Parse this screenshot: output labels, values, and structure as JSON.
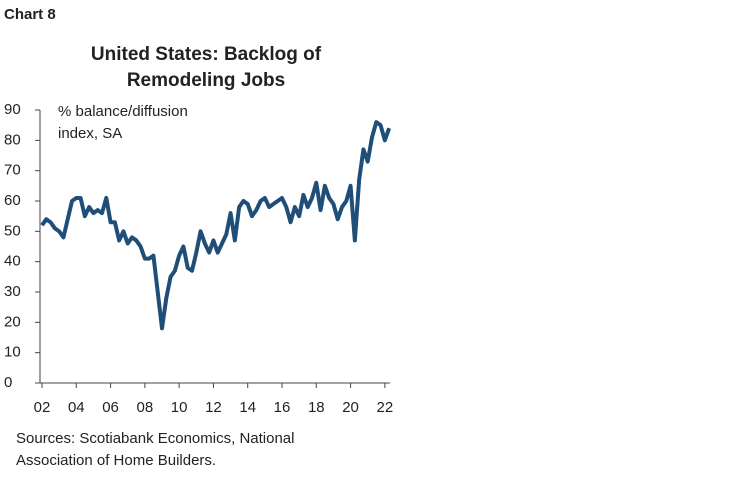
{
  "chart_data": {
    "type": "line",
    "chart_label": "Chart 8",
    "title": "United States: Backlog of Remodeling Jobs",
    "y_label": "% balance/diffusion index, SA",
    "source": "Sources: Scotiabank Economics, National Association of Home Builders.",
    "x": [
      2002,
      2002.25,
      2002.5,
      2002.75,
      2003,
      2003.25,
      2003.5,
      2003.75,
      2004,
      2004.25,
      2004.5,
      2004.75,
      2005,
      2005.25,
      2005.5,
      2005.75,
      2006,
      2006.25,
      2006.5,
      2006.75,
      2007,
      2007.25,
      2007.5,
      2007.75,
      2008,
      2008.25,
      2008.5,
      2008.75,
      2009,
      2009.25,
      2009.5,
      2009.75,
      2010,
      2010.25,
      2010.5,
      2010.75,
      2011,
      2011.25,
      2011.5,
      2011.75,
      2012,
      2012.25,
      2012.5,
      2012.75,
      2013,
      2013.25,
      2013.5,
      2013.75,
      2014,
      2014.25,
      2014.5,
      2014.75,
      2015,
      2015.25,
      2015.5,
      2015.75,
      2016,
      2016.25,
      2016.5,
      2016.75,
      2017,
      2017.25,
      2017.5,
      2017.75,
      2018,
      2018.25,
      2018.5,
      2018.75,
      2019,
      2019.25,
      2019.5,
      2019.75,
      2020,
      2020.25,
      2020.5,
      2020.75,
      2021,
      2021.25,
      2021.5,
      2021.75,
      2022,
      2022.25
    ],
    "series": [
      {
        "color": "#1f4e79",
        "values": [
          52,
          54,
          53,
          51,
          50,
          48,
          54,
          60,
          61,
          61,
          55,
          58,
          56,
          57,
          56,
          61,
          53,
          53,
          47,
          50,
          46,
          48,
          47,
          45,
          41,
          41,
          42,
          30,
          18,
          28,
          35,
          37,
          42,
          45,
          38,
          37,
          43,
          50,
          46,
          43,
          47,
          43,
          46,
          49,
          56,
          47,
          58,
          60,
          59,
          55,
          57,
          60,
          61,
          58,
          59,
          60,
          61,
          58,
          53,
          58,
          55,
          62,
          58,
          61,
          66,
          57,
          65,
          61,
          59,
          54,
          58,
          60,
          65,
          47,
          67,
          77,
          73,
          81,
          86,
          85,
          80,
          84
        ]
      }
    ],
    "xlim": [
      2002,
      2022.3
    ],
    "xticks": [
      {
        "value": 2002,
        "label": "02"
      },
      {
        "value": 2004,
        "label": "04"
      },
      {
        "value": 2006,
        "label": "06"
      },
      {
        "value": 2008,
        "label": "08"
      },
      {
        "value": 2010,
        "label": "10"
      },
      {
        "value": 2012,
        "label": "12"
      },
      {
        "value": 2014,
        "label": "14"
      },
      {
        "value": 2016,
        "label": "16"
      },
      {
        "value": 2018,
        "label": "18"
      },
      {
        "value": 2020,
        "label": "20"
      },
      {
        "value": 2022,
        "label": "22"
      }
    ],
    "ylim": [
      0,
      90
    ],
    "yticks": [
      0,
      10,
      20,
      30,
      40,
      50,
      60,
      70,
      80,
      90
    ]
  }
}
